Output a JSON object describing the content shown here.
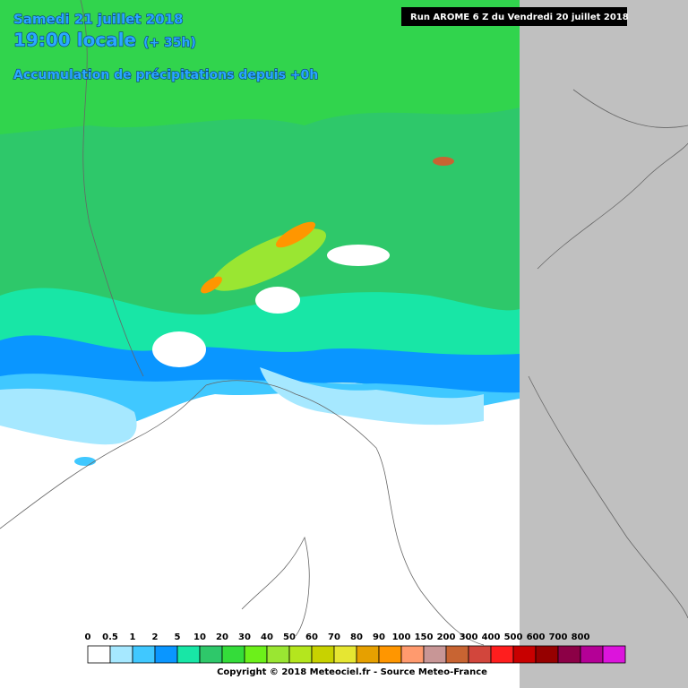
{
  "header": {
    "date": "Samedi 21 juillet 2018",
    "time": "19:00 locale",
    "lead": "(+ 35h)",
    "product": "Accumulation de précipitations depuis +0h",
    "run": "Run AROME 6 Z du Vendredi 20 juillet 2018"
  },
  "legend": {
    "items": [
      {
        "label": "0",
        "color": "#ffffff"
      },
      {
        "label": "0.5",
        "color": "#a6e8ff"
      },
      {
        "label": "1",
        "color": "#40c8ff"
      },
      {
        "label": "2",
        "color": "#0a96ff"
      },
      {
        "label": "5",
        "color": "#18e6a6"
      },
      {
        "label": "10",
        "color": "#2ec86a"
      },
      {
        "label": "20",
        "color": "#34dc3a"
      },
      {
        "label": "30",
        "color": "#6cf01a"
      },
      {
        "label": "40",
        "color": "#9ae632"
      },
      {
        "label": "50",
        "color": "#b4e61e"
      },
      {
        "label": "60",
        "color": "#c8d200"
      },
      {
        "label": "70",
        "color": "#e6e632"
      },
      {
        "label": "80",
        "color": "#e6a000"
      },
      {
        "label": "90",
        "color": "#ff9600"
      },
      {
        "label": "100",
        "color": "#ff9a6e"
      },
      {
        "label": "150",
        "color": "#c89696"
      },
      {
        "label": "200",
        "color": "#c86432"
      },
      {
        "label": "300",
        "color": "#d2463c"
      },
      {
        "label": "400",
        "color": "#ff1e1e"
      },
      {
        "label": "500",
        "color": "#c80000"
      },
      {
        "label": "600",
        "color": "#960000"
      },
      {
        "label": "700",
        "color": "#8c0046"
      },
      {
        "label": "800",
        "color": "#b40096"
      }
    ],
    "last_color": "#dc14dc"
  },
  "footer": {
    "copyright": "Copyright © 2018 Meteociel.fr - Source Meteo-France"
  }
}
